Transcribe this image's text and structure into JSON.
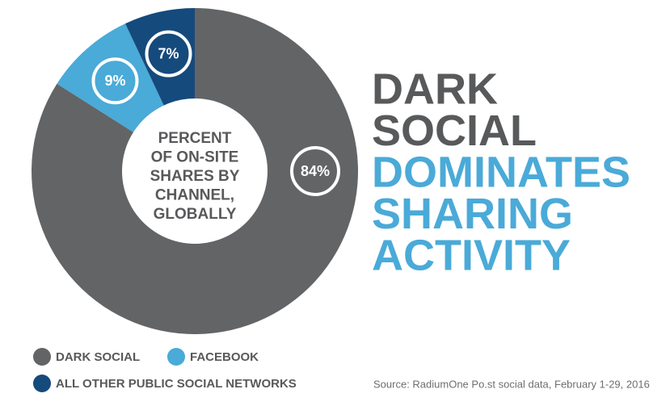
{
  "chart_data": {
    "type": "donut",
    "center_text": [
      "PERCENT",
      "OF ON-SITE",
      "SHARES BY",
      "CHANNEL,",
      "GLOBALLY"
    ],
    "title": [
      "DARK",
      "SOCIAL"
    ],
    "title_color": "#58595b",
    "subtitle": [
      "DOMINATES",
      "SHARING",
      "ACTIVITY"
    ],
    "subtitle_color": "#4aaad8",
    "categories": [
      "DARK SOCIAL",
      "FACEBOOK",
      "ALL OTHER PUBLIC SOCIAL NETWORKS"
    ],
    "values": [
      84,
      9,
      7
    ],
    "value_labels": [
      "84%",
      "9%",
      "7%"
    ],
    "colors": [
      "#636466",
      "#4aaad8",
      "#154a7c"
    ],
    "source": "Source: RadiumOne Po.st social data, February 1-29, 2016"
  }
}
